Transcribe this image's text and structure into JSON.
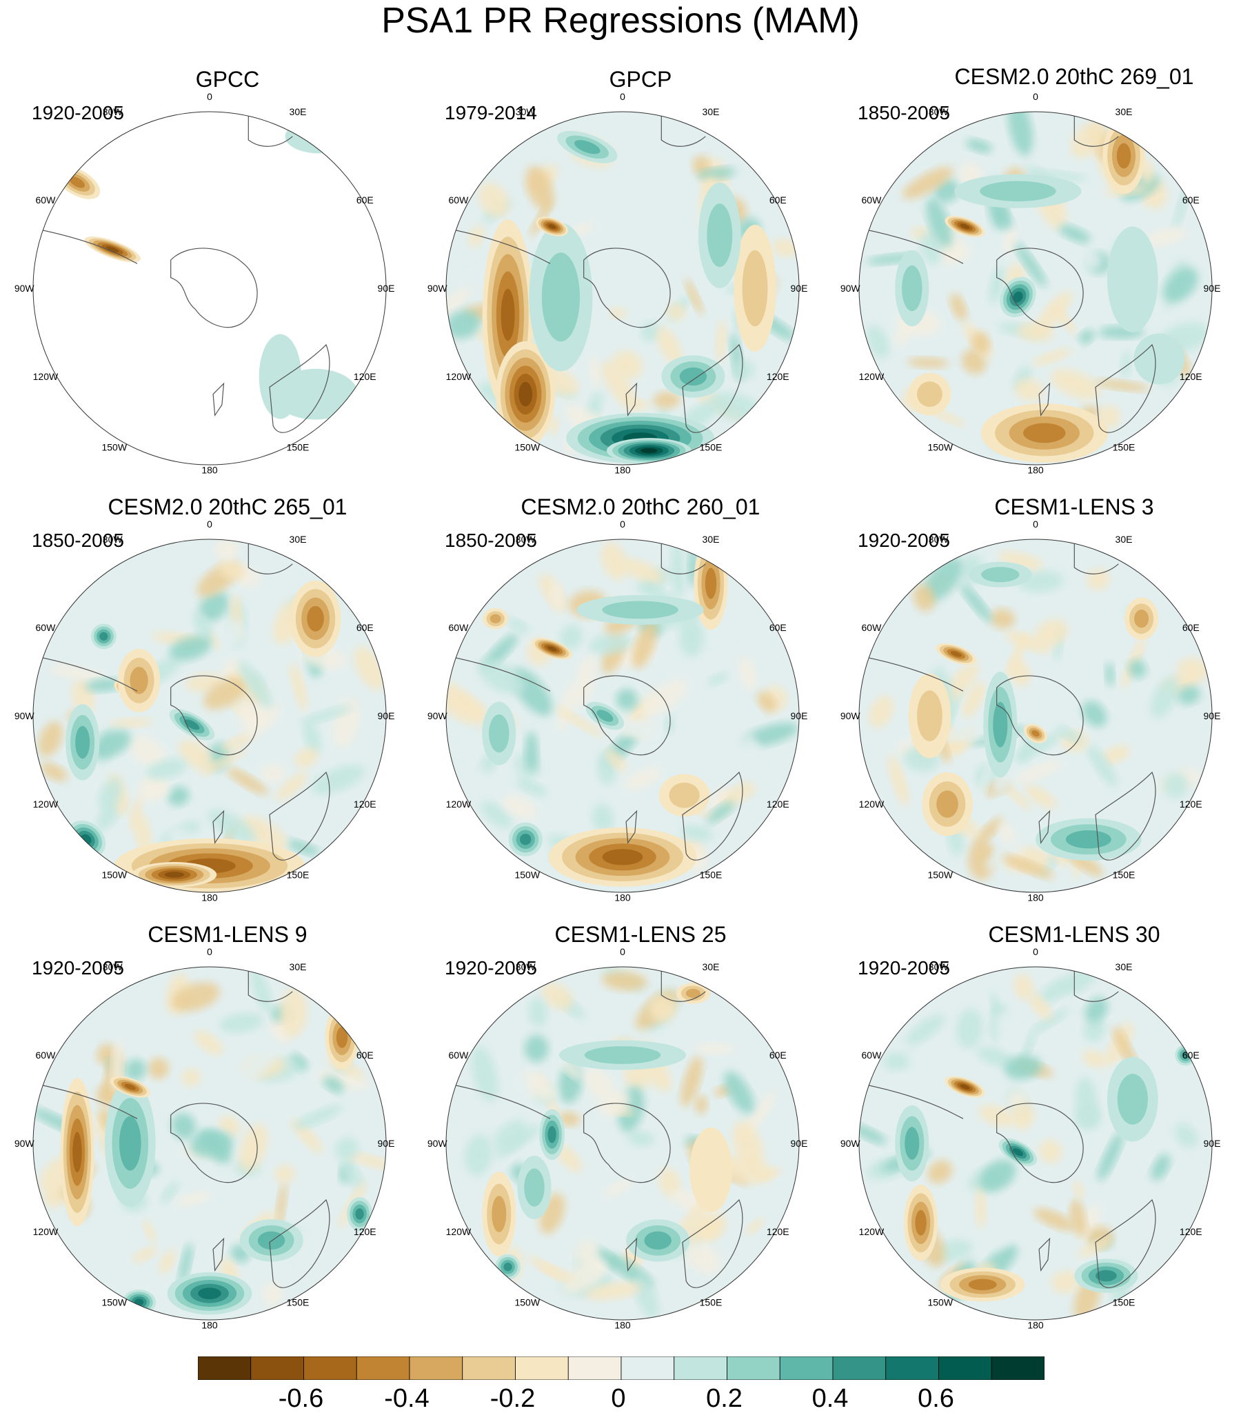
{
  "title": "PSA1 PR Regressions (MAM)",
  "lon_labels": [
    "0",
    "30E",
    "60E",
    "90E",
    "120E",
    "150E",
    "180",
    "150W",
    "120W",
    "90W",
    "60W",
    "30W"
  ],
  "palette": {
    "land_outline": "#555555",
    "colors": [
      "#5c3506",
      "#8a520e",
      "#a8681c",
      "#c08432",
      "#d6a860",
      "#e9cc94",
      "#f6e6c2",
      "#f4efe2",
      "#e3efef",
      "#c2e6df",
      "#92d3c6",
      "#5fb7a9",
      "#349488",
      "#14776d",
      "#035c50",
      "#003c30"
    ]
  },
  "panels": [
    {
      "title": "GPCC",
      "period": "1920-2005"
    },
    {
      "title": "GPCP",
      "period": "1979-2014"
    },
    {
      "title": "CESM2.0 20thC 269_01",
      "period": "1850-2005"
    },
    {
      "title": "CESM2.0 20thC 265_01",
      "period": "1850-2005"
    },
    {
      "title": "CESM2.0 20thC 260_01",
      "period": "1850-2005"
    },
    {
      "title": "CESM1-LENS 3",
      "period": "1920-2005"
    },
    {
      "title": "CESM1-LENS 9",
      "period": "1920-2005"
    },
    {
      "title": "CESM1-LENS 25",
      "period": "1920-2005"
    },
    {
      "title": "CESM1-LENS 30",
      "period": "1920-2005"
    }
  ],
  "colorbar": {
    "labels": [
      "-0.6",
      "-0.4",
      "-0.2",
      "0",
      "0.2",
      "0.4",
      "0.6"
    ],
    "levels": [
      -0.7,
      -0.6,
      -0.5,
      -0.4,
      -0.3,
      -0.2,
      -0.1,
      0,
      0.1,
      0.2,
      0.3,
      0.4,
      0.5,
      0.6,
      0.7
    ]
  }
}
